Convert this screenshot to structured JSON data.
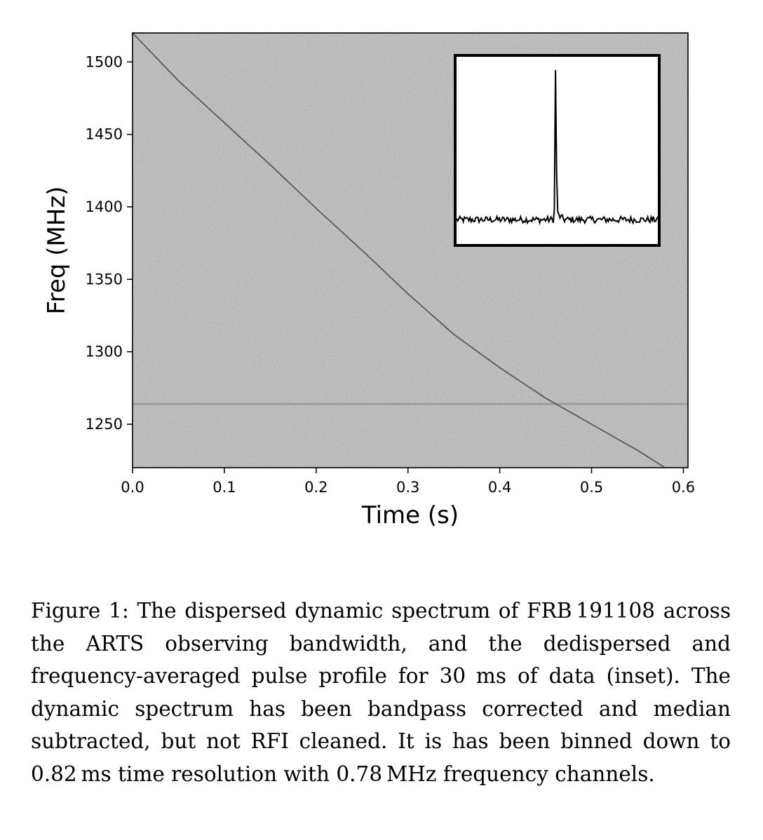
{
  "chart_data": {
    "type": "heatmap",
    "description_kind": "dispersed dynamic spectrum with inset pulse profile",
    "xlabel": "Time (s)",
    "ylabel": "Freq (MHz)",
    "xlim": [
      0.0,
      0.605
    ],
    "ylim": [
      1220,
      1520
    ],
    "x_ticks": [
      0.0,
      0.1,
      0.2,
      0.3,
      0.4,
      0.5,
      0.6
    ],
    "x_tick_labels": [
      "0.0",
      "0.1",
      "0.2",
      "0.3",
      "0.4",
      "0.5",
      "0.6"
    ],
    "y_ticks": [
      1250,
      1300,
      1350,
      1400,
      1450,
      1500
    ],
    "y_tick_labels": [
      "1250",
      "1300",
      "1350",
      "1400",
      "1450",
      "1500"
    ],
    "colormap": "grayscale",
    "background_color": "#bdbdbd",
    "sweep_track": {
      "time_s": [
        0.0,
        0.05,
        0.1,
        0.15,
        0.2,
        0.25,
        0.3,
        0.35,
        0.4,
        0.45,
        0.5,
        0.55,
        0.58
      ],
      "freq_mhz": [
        1520,
        1487,
        1458,
        1429,
        1399,
        1370,
        1340,
        1312,
        1289,
        1268,
        1250,
        1232,
        1220
      ]
    },
    "rfi_band_mhz": 1264,
    "inset": {
      "content": "dedispersed frequency-averaged pulse profile",
      "pulse_peak_fraction": 0.49,
      "baseline_fraction": 0.13,
      "peak_fraction": 0.93
    }
  },
  "caption": {
    "text": "Figure 1: The dispersed dynamic spectrum of FRB 191108 across the ARTS observing bandwidth, and the dedispersed and frequency-averaged pulse profile for 30 ms of data (in­set). The dynamic spectrum has been bandpass corrected and median subtracted, but not RFI cleaned. It is has been binned down to 0.82 ms time resolution with 0.78 MHz fre­quency channels."
  },
  "colors": {
    "axis": "#000000",
    "noise_base": "#bdbdbd",
    "sweep": "#3a3a3a",
    "rfi": "#8e8e8e",
    "inset_bg": "#ffffff",
    "profile": "#000000"
  }
}
